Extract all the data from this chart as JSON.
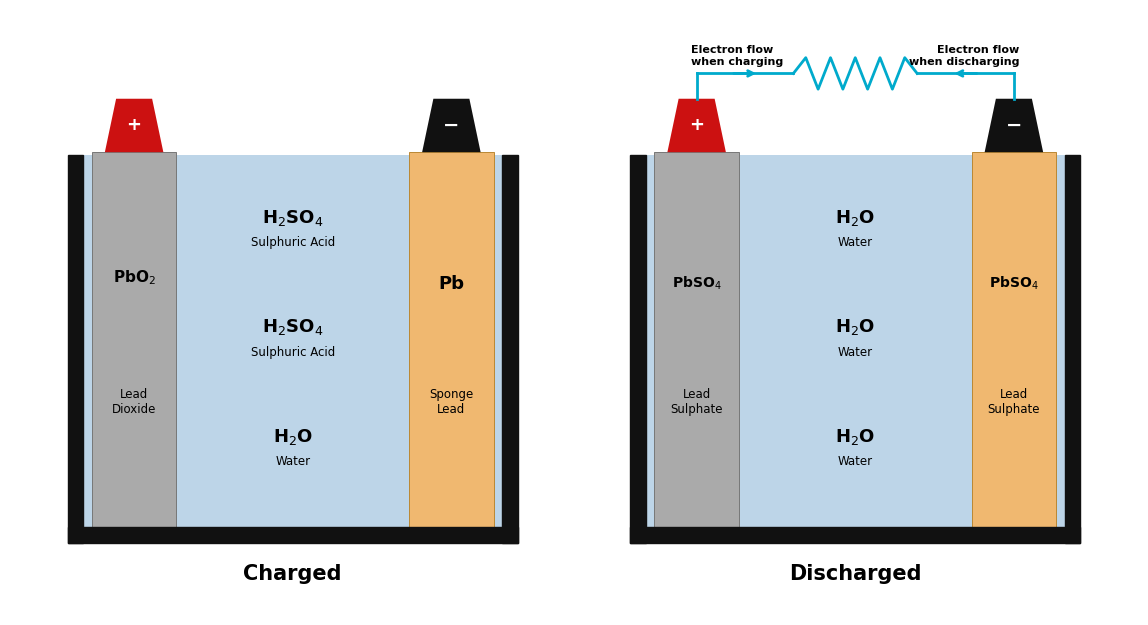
{
  "bg_color": "#ffffff",
  "liquid_color": "#bdd5e8",
  "tank_color": "#111111",
  "gray_electrode_color": "#aaaaaa",
  "orange_electrode_color": "#f0b870",
  "red_terminal_color": "#cc1111",
  "black_terminal_color": "#111111",
  "electron_flow_color": "#00aacc",
  "title_charged": "Charged",
  "title_discharged": "Discharged",
  "charged_left_label_main": "PbO$_2$",
  "charged_left_label_sub": "Lead\nDioxide",
  "charged_right_label_main": "Pb",
  "charged_right_label_sub": "Sponge\nLead",
  "charged_center_texts": [
    [
      "H$_2$SO$_4$",
      "Sulphuric Acid"
    ],
    [
      "H$_2$SO$_4$",
      "Sulphuric Acid"
    ],
    [
      "H$_2$O",
      "Water"
    ]
  ],
  "discharged_left_label_main": "PbSO$_4$",
  "discharged_left_label_sub": "Lead\nSulphate",
  "discharged_right_label_main": "PbSO$_4$",
  "discharged_right_label_sub": "Lead\nSulphate",
  "discharged_center_texts": [
    [
      "H$_2$O",
      "Water"
    ],
    [
      "H$_2$O",
      "Water"
    ],
    [
      "H$_2$O",
      "Water"
    ]
  ],
  "electron_flow_charging": "Electron flow\nwhen charging",
  "electron_flow_discharging": "Electron flow\nwhen discharging"
}
